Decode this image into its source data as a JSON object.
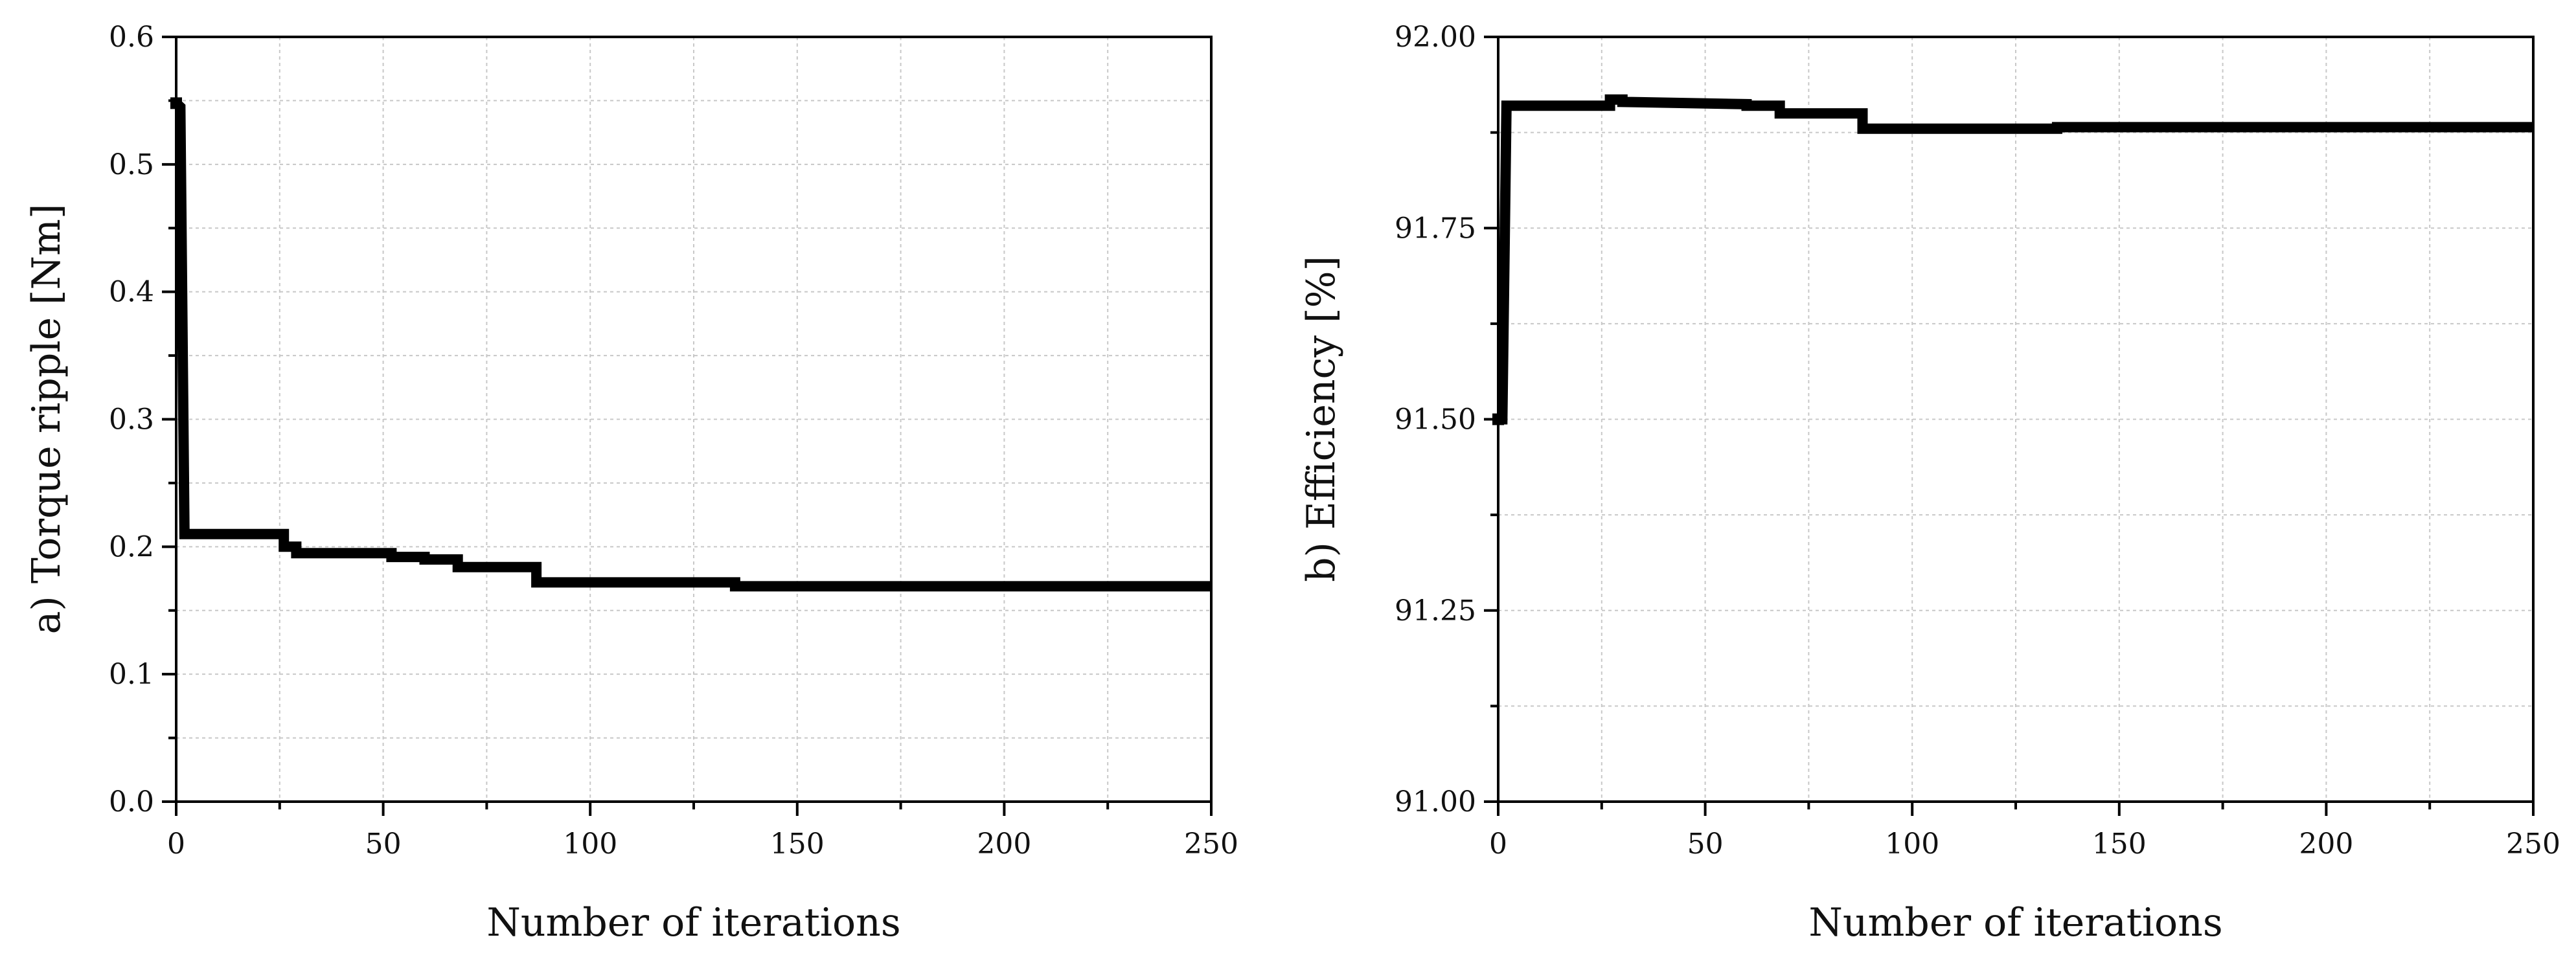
{
  "colors": {
    "line": "#000000",
    "grid": "#c8c8c8",
    "axis": "#000000",
    "background": "#ffffff"
  },
  "chart_data": [
    {
      "type": "line",
      "panel": "a",
      "title": "",
      "xlabel": "Number of iterations",
      "ylabel": "a) Torque ripple [Nm]",
      "xlim": [
        0,
        250
      ],
      "ylim": [
        0,
        0.6
      ],
      "xticks": [
        0,
        50,
        100,
        150,
        200,
        250
      ],
      "xtick_labels": [
        "0",
        "50",
        "100",
        "150",
        "200",
        "250"
      ],
      "yticks": [
        0,
        0.1,
        0.2,
        0.3,
        0.4,
        0.5,
        0.6
      ],
      "ytick_labels": [
        "0.0",
        "0.1",
        "0.2",
        "0.3",
        "0.4",
        "0.5",
        "0.6"
      ],
      "grid": true,
      "legend": "none",
      "series": [
        {
          "x": [
            0,
            1,
            2,
            26,
            26,
            29,
            29,
            52,
            52,
            60,
            60,
            68,
            68,
            87,
            87,
            135,
            135,
            250
          ],
          "y": [
            0.548,
            0.545,
            0.21,
            0.21,
            0.2,
            0.2,
            0.195,
            0.195,
            0.192,
            0.192,
            0.19,
            0.19,
            0.184,
            0.184,
            0.172,
            0.172,
            0.169,
            0.169
          ]
        }
      ]
    },
    {
      "type": "line",
      "panel": "b",
      "title": "",
      "xlabel": "Number of iterations",
      "ylabel": "b) Efficiency [%]",
      "xlim": [
        0,
        250
      ],
      "ylim": [
        91.0,
        92.0
      ],
      "xticks": [
        0,
        50,
        100,
        150,
        200,
        250
      ],
      "xtick_labels": [
        "0",
        "50",
        "100",
        "150",
        "200",
        "250"
      ],
      "yticks": [
        91.0,
        91.25,
        91.5,
        91.75,
        92.0
      ],
      "ytick_labels": [
        "91.00",
        "91.25",
        "91.50",
        "91.75",
        "92.00"
      ],
      "grid": true,
      "legend": "none",
      "series": [
        {
          "x": [
            0,
            1,
            2,
            27,
            27,
            30,
            30,
            60,
            60,
            68,
            68,
            88,
            88,
            135,
            135,
            250
          ],
          "y": [
            91.5,
            91.5,
            91.91,
            91.91,
            91.918,
            91.918,
            91.915,
            91.912,
            91.91,
            91.91,
            91.9,
            91.9,
            91.88,
            91.88,
            91.882,
            91.882
          ]
        }
      ]
    }
  ]
}
